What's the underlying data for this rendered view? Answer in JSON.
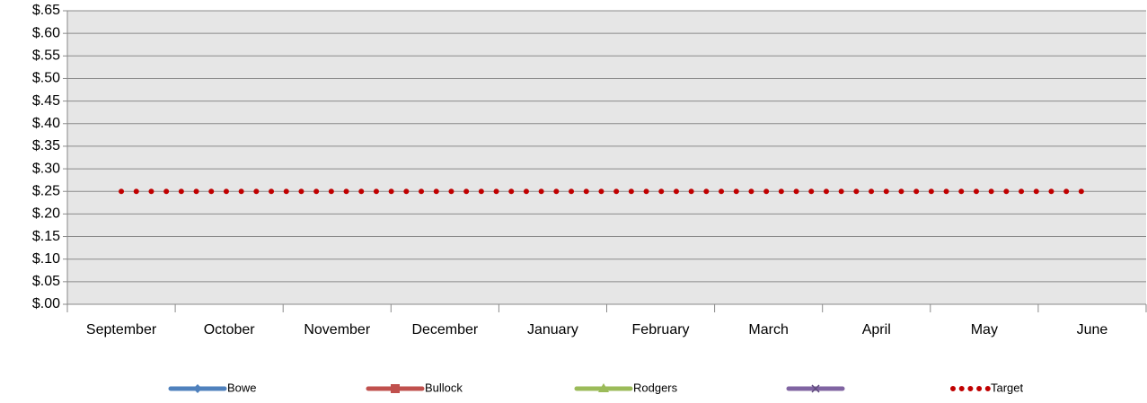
{
  "chart_data": {
    "type": "line",
    "categories": [
      "September",
      "October",
      "November",
      "December",
      "January",
      "February",
      "March",
      "April",
      "May",
      "June"
    ],
    "series": [
      {
        "name": "Bowe",
        "color": "#4f81bd",
        "marker": "diamond",
        "values": [
          null,
          null,
          null,
          null,
          null,
          null,
          null,
          null,
          null,
          null
        ]
      },
      {
        "name": "Bullock",
        "color": "#c0504d",
        "marker": "square",
        "values": [
          null,
          null,
          null,
          null,
          null,
          null,
          null,
          null,
          null,
          null
        ]
      },
      {
        "name": "Rodgers",
        "color": "#9bbb59",
        "marker": "triangle",
        "values": [
          null,
          null,
          null,
          null,
          null,
          null,
          null,
          null,
          null,
          null
        ]
      },
      {
        "color": "#8064a2",
        "marker": "x",
        "values": [
          null,
          null,
          null,
          null,
          null,
          null,
          null,
          null,
          null,
          null
        ]
      },
      {
        "name": "Target",
        "color": "#c00000",
        "dash": "dotted",
        "values": [
          0.25,
          0.25,
          0.25,
          0.25,
          0.25,
          0.25,
          0.25,
          0.25,
          0.25,
          0.25
        ]
      }
    ],
    "ylim": [
      0,
      0.65
    ],
    "yticks": [
      {
        "value": 0,
        "label": "$.00"
      },
      {
        "value": 0.05,
        "label": "$.05"
      },
      {
        "value": 0.1,
        "label": "$.10"
      },
      {
        "value": 0.15,
        "label": "$.15"
      },
      {
        "value": 0.2,
        "label": "$.20"
      },
      {
        "value": 0.25,
        "label": "$.25"
      },
      {
        "value": 0.3,
        "label": "$.30"
      },
      {
        "value": 0.35,
        "label": "$.35"
      },
      {
        "value": 0.4,
        "label": "$.40"
      },
      {
        "value": 0.45,
        "label": "$.45"
      },
      {
        "value": 0.5,
        "label": "$.50"
      },
      {
        "value": 0.55,
        "label": "$.55"
      },
      {
        "value": 0.6,
        "label": "$.60"
      },
      {
        "value": 0.65,
        "label": "$.65"
      }
    ],
    "grid": true,
    "legend": "bottom"
  }
}
